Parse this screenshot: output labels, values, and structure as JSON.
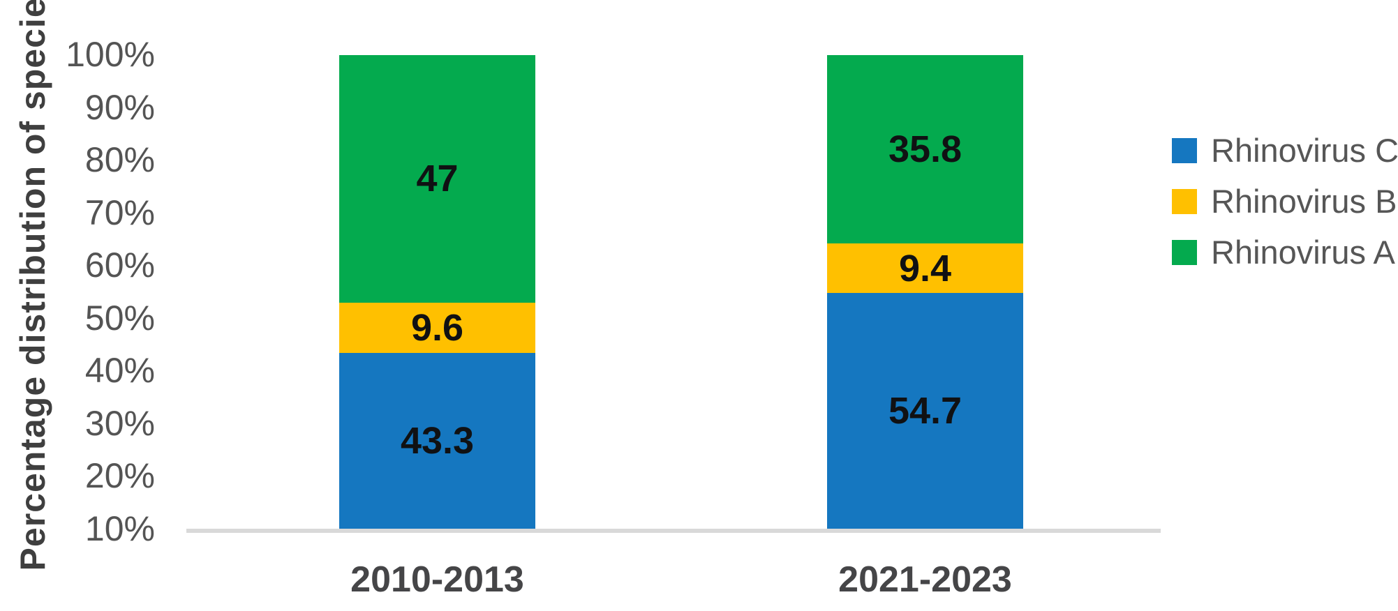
{
  "chart_data": {
    "type": "bar",
    "stacked": true,
    "title": "",
    "xlabel": "",
    "ylabel": "Percentage distribution of species",
    "categories": [
      "2010-2013",
      "2021-2023"
    ],
    "series": [
      {
        "name": "Rhinovirus C",
        "color": "#1577c0",
        "values": [
          43.3,
          54.7
        ]
      },
      {
        "name": "Rhinovirus B",
        "color": "#ffc000",
        "values": [
          9.6,
          9.4
        ]
      },
      {
        "name": "Rhinovirus A",
        "color": "#04aa4e",
        "values": [
          47,
          35.8
        ]
      }
    ],
    "yticks": [
      "100%",
      "90%",
      "80%",
      "70%",
      "60%",
      "50%",
      "40%",
      "30%",
      "20%",
      "10%"
    ],
    "axis_range": [
      10,
      100
    ],
    "grid": false,
    "legend_position": "right",
    "legend_entries": [
      "Rhinovirus C",
      "Rhinovirus B",
      "Rhinovirus A"
    ],
    "colors": {
      "axis_line": "#d9d9d9",
      "tick_text": "#545454",
      "category_text": "#454547",
      "axis_title_text": "#3f3f3f",
      "value_label_text": "#101113",
      "legend_text": "#565656",
      "background": "#ffffff"
    }
  }
}
